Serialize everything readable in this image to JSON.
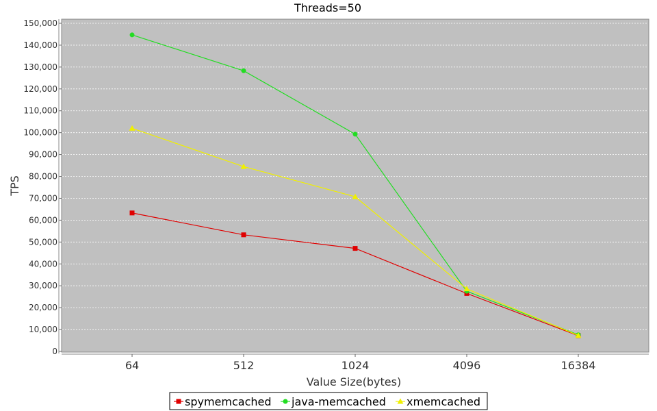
{
  "chart_data": {
    "type": "line",
    "title": "Threads=50",
    "xlabel": "Value Size(bytes)",
    "ylabel": "TPS",
    "categories": [
      "64",
      "512",
      "1024",
      "4096",
      "16384"
    ],
    "ylim": [
      0,
      150000
    ],
    "ytick_step": 10000,
    "ytick_labels": [
      "0",
      "10,000",
      "20,000",
      "30,000",
      "40,000",
      "50,000",
      "60,000",
      "70,000",
      "80,000",
      "90,000",
      "100,000",
      "110,000",
      "120,000",
      "130,000",
      "140,000",
      "150,000"
    ],
    "grid": true,
    "legend_position": "bottom",
    "background_color": "#c0c0c0",
    "gridline_color": "#ffffff",
    "series": [
      {
        "name": "spymemcached",
        "color": "#e00000",
        "marker": "square",
        "values": [
          63300,
          53300,
          47100,
          26500,
          7200
        ]
      },
      {
        "name": "java-memcached",
        "color": "#22dd22",
        "marker": "circle",
        "values": [
          144700,
          128300,
          99300,
          27500,
          7600
        ]
      },
      {
        "name": "xmemcached",
        "color": "#f0f000",
        "marker": "triangle",
        "values": [
          102000,
          84500,
          70700,
          28600,
          7300
        ]
      }
    ]
  }
}
